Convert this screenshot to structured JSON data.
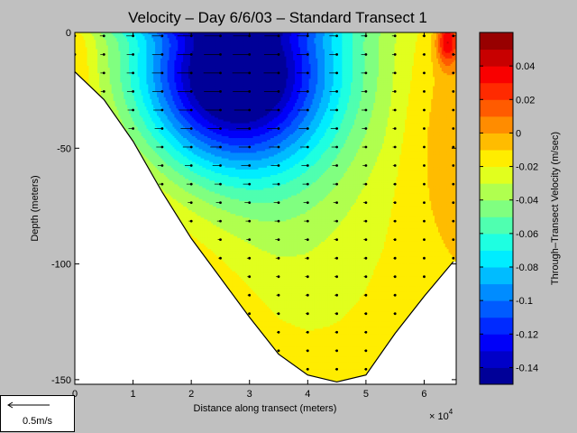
{
  "chart_data": {
    "type": "heatmap",
    "title": "Velocity – Day 6/6/03 – Standard Transect 1",
    "xlabel": "Distance along transect (meters)",
    "ylabel": "Depth (meters)",
    "x_exponent_label": "× 10",
    "x_exponent_power": "4",
    "xlim": [
      0,
      6.55
    ],
    "ylim": [
      -152,
      0
    ],
    "x_ticks": [
      0,
      1,
      2,
      3,
      4,
      5,
      6
    ],
    "x_tick_labels": [
      "0",
      "1",
      "2",
      "3",
      "4",
      "5",
      "6"
    ],
    "y_ticks": [
      0,
      -50,
      -100,
      -150
    ],
    "y_tick_labels": [
      "0",
      "-50",
      "-100",
      "-150"
    ],
    "colorbar": {
      "label": "Through–Transect Velocity (m/sec)",
      "range": [
        -0.15,
        0.06
      ],
      "ticks": [
        0.04,
        0.02,
        0,
        -0.02,
        -0.04,
        -0.06,
        -0.08,
        -0.1,
        -0.12,
        -0.14
      ],
      "tick_labels": [
        "0.04",
        "0.02",
        "0",
        "-0.02",
        "-0.04",
        "-0.06",
        "-0.08",
        "-0.1",
        "-0.12",
        "-0.14"
      ]
    },
    "bottom_profile": [
      {
        "x": 0,
        "depth": -17
      },
      {
        "x": 0.5,
        "depth": -29
      },
      {
        "x": 1.0,
        "depth": -47
      },
      {
        "x": 1.5,
        "depth": -69
      },
      {
        "x": 2.0,
        "depth": -89
      },
      {
        "x": 2.5,
        "depth": -106
      },
      {
        "x": 3.0,
        "depth": -123
      },
      {
        "x": 3.5,
        "depth": -139
      },
      {
        "x": 4.0,
        "depth": -148
      },
      {
        "x": 4.5,
        "depth": -151
      },
      {
        "x": 5.0,
        "depth": -148
      },
      {
        "x": 5.5,
        "depth": -130
      },
      {
        "x": 6.0,
        "depth": -114
      },
      {
        "x": 6.5,
        "depth": -99
      }
    ],
    "core_minimum": {
      "x": 2.7,
      "depth": -20,
      "value": -0.14
    },
    "surface_max_velocity": -0.16,
    "east_max": {
      "x": 6.4,
      "depth": -4,
      "value": 0.05
    },
    "east_side_value": 0.0,
    "bottom_value": -0.015,
    "profile_stations": [
      0,
      0.5,
      1.0,
      1.5,
      2.0,
      2.5,
      3.0,
      3.5,
      4.0,
      4.5,
      5.0,
      5.5,
      6.0,
      6.5
    ],
    "scale_arrow_label": "0.5m/s"
  }
}
